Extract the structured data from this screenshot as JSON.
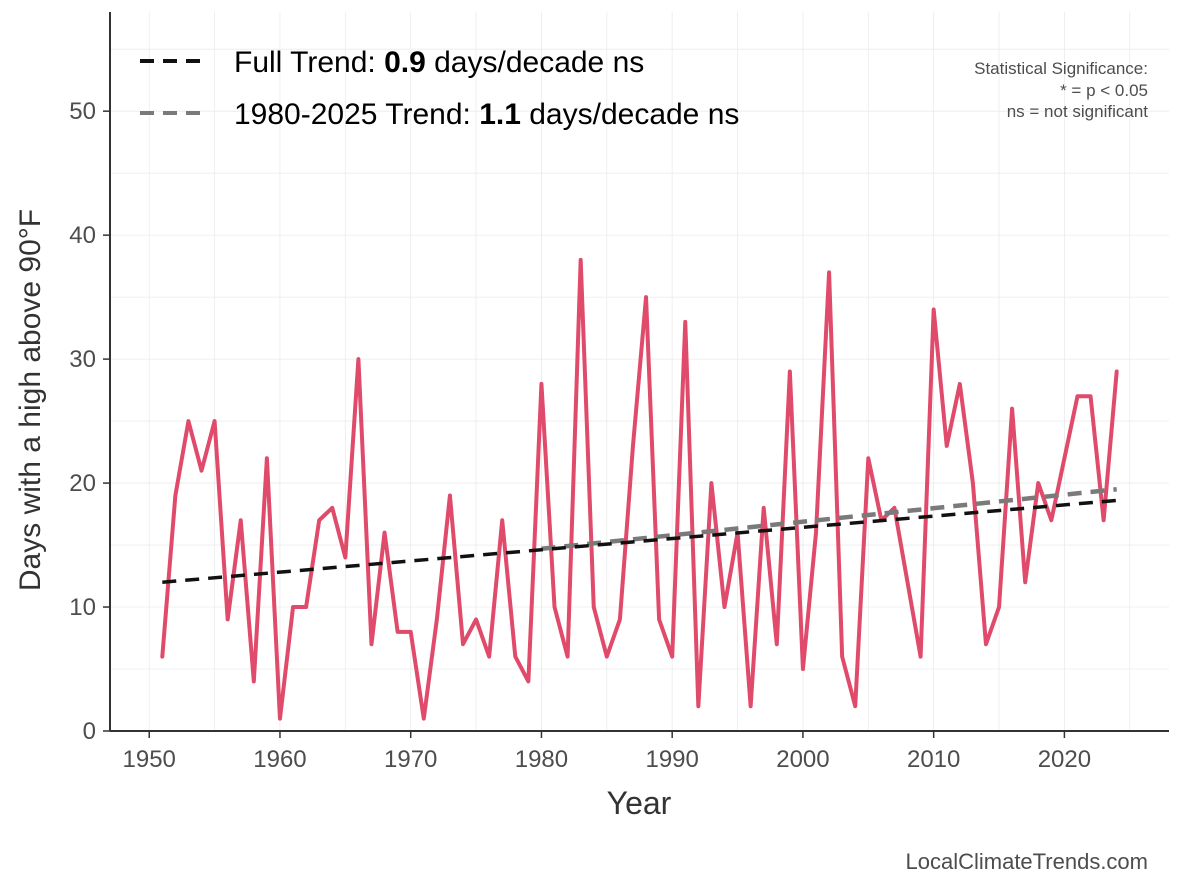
{
  "chart_data": {
    "type": "line",
    "title": "",
    "xlabel": "Year",
    "ylabel": "Days with a high above 90°F",
    "xlim": [
      1947,
      2028
    ],
    "ylim": [
      0,
      58
    ],
    "x_ticks": [
      1950,
      1960,
      1970,
      1980,
      1990,
      2000,
      2010,
      2020
    ],
    "y_ticks": [
      0,
      10,
      20,
      30,
      40,
      50
    ],
    "grid": true,
    "legend_position": "top-left",
    "series": [
      {
        "name": "Days above 90°F",
        "color": "#e04a6b",
        "x": [
          1951,
          1952,
          1953,
          1954,
          1955,
          1956,
          1957,
          1958,
          1959,
          1960,
          1961,
          1962,
          1963,
          1964,
          1965,
          1966,
          1967,
          1968,
          1969,
          1970,
          1971,
          1972,
          1973,
          1974,
          1975,
          1976,
          1977,
          1978,
          1979,
          1980,
          1981,
          1982,
          1983,
          1984,
          1985,
          1986,
          1987,
          1988,
          1989,
          1990,
          1991,
          1992,
          1993,
          1994,
          1995,
          1996,
          1997,
          1998,
          1999,
          2000,
          2001,
          2002,
          2003,
          2004,
          2005,
          2006,
          2007,
          2008,
          2009,
          2010,
          2011,
          2012,
          2013,
          2014,
          2015,
          2016,
          2017,
          2018,
          2019,
          2020,
          2021,
          2022,
          2023,
          2024
        ],
        "values": [
          6,
          19,
          25,
          21,
          25,
          9,
          17,
          4,
          22,
          1,
          10,
          10,
          17,
          18,
          14,
          30,
          7,
          16,
          8,
          8,
          1,
          9,
          19,
          7,
          9,
          6,
          17,
          6,
          4,
          28,
          10,
          6,
          38,
          10,
          6,
          9,
          23,
          35,
          9,
          6,
          33,
          2,
          20,
          10,
          16,
          2,
          18,
          7,
          29,
          5,
          16,
          37,
          6,
          2,
          22,
          17,
          18,
          12,
          6,
          34,
          23,
          28,
          20,
          7,
          10,
          26,
          12,
          20,
          17,
          22,
          27,
          27,
          17,
          29
        ]
      }
    ],
    "trend_lines": [
      {
        "name": "Full Trend",
        "color": "#111111",
        "x": [
          1951,
          2024
        ],
        "values": [
          12.0,
          18.6
        ]
      },
      {
        "name": "1980-2025 Trend",
        "color": "#7a7a7a",
        "x": [
          1980,
          2024
        ],
        "values": [
          14.7,
          19.5
        ]
      }
    ],
    "legend": [
      {
        "prefix": "Full Trend: ",
        "value": "0.9",
        "suffix": " days/decade ns"
      },
      {
        "prefix": "1980-2025 Trend: ",
        "value": "1.1",
        "suffix": " days/decade ns"
      }
    ],
    "significance_note": [
      "Statistical Significance:",
      "* = p < 0.05",
      "ns = not significant"
    ],
    "credit": "LocalClimateTrends.com"
  }
}
